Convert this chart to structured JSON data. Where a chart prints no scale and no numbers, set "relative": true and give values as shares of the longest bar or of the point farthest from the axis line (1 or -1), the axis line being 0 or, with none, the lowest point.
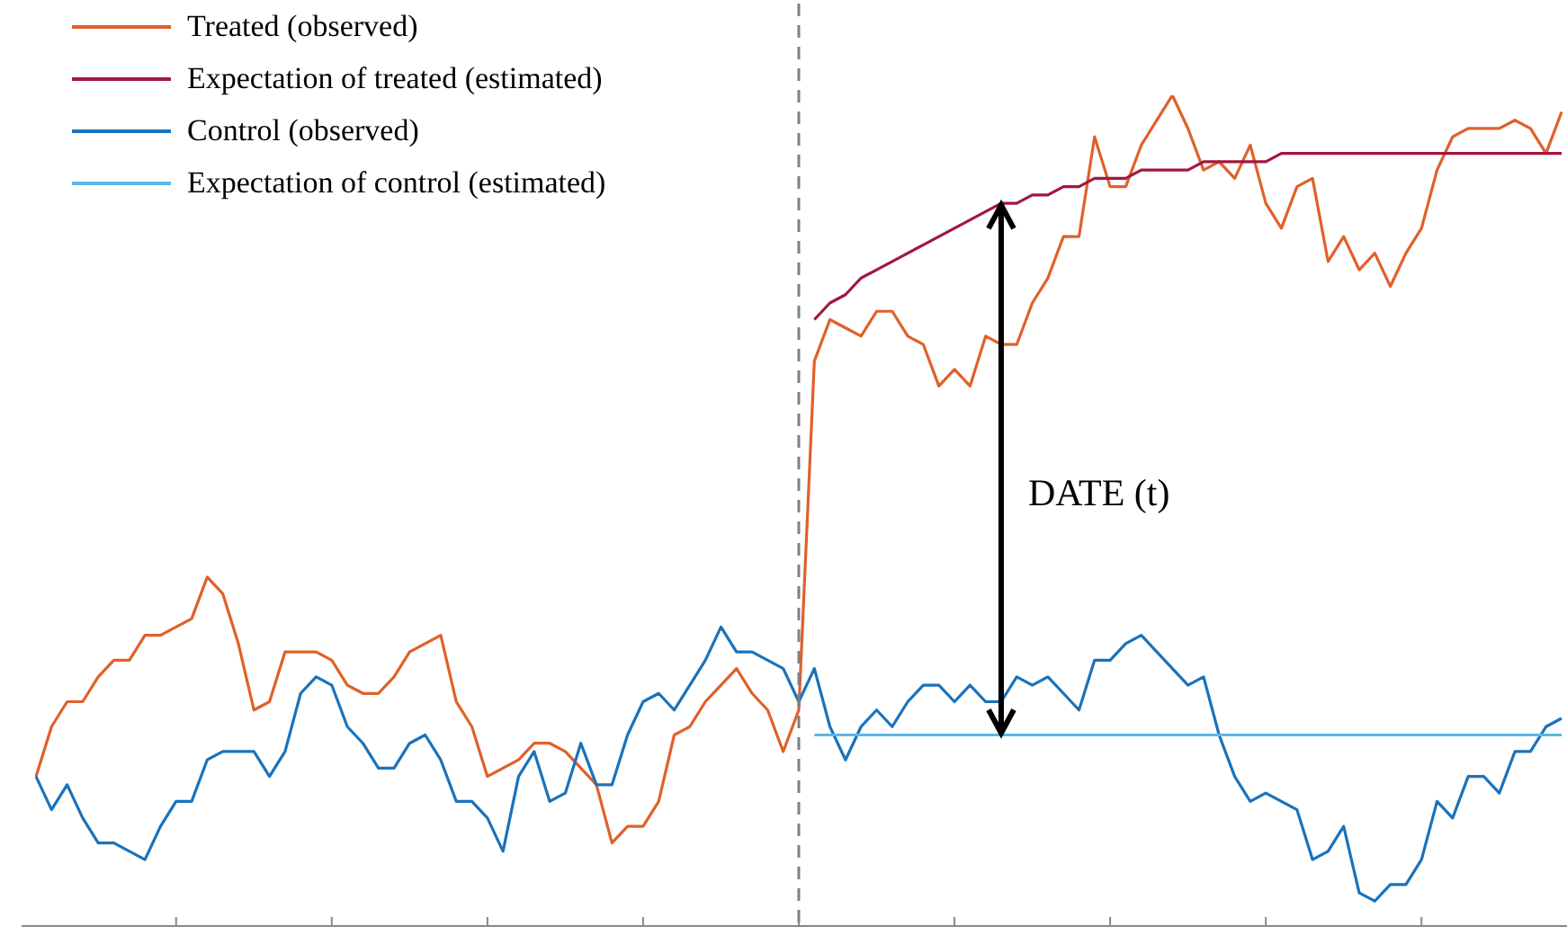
{
  "chart_data": {
    "type": "line",
    "relative": true,
    "legend": "top left",
    "marker": "none",
    "line_style": "solid",
    "categories": [
      null,
      null,
      null,
      null,
      null,
      null,
      null,
      null,
      null,
      null,
      null,
      null,
      null,
      null,
      null,
      null,
      null,
      null,
      null,
      null,
      null,
      null,
      null,
      null,
      null,
      null,
      null,
      null,
      null,
      null,
      null,
      null,
      null,
      null,
      null,
      null,
      null,
      null,
      null,
      null,
      null,
      null,
      null,
      null,
      null,
      null,
      null,
      null,
      null,
      null,
      null,
      null,
      null,
      null,
      null,
      null,
      null,
      null,
      null,
      null,
      null,
      null,
      null,
      null,
      null,
      null,
      null,
      null,
      null,
      null,
      null,
      null,
      null,
      null,
      null,
      null,
      null,
      null,
      null,
      null,
      null,
      null,
      null,
      null,
      null,
      null,
      null,
      null,
      null,
      null,
      null,
      null,
      null,
      null,
      null,
      null,
      null,
      null,
      null
    ],
    "series": [
      {
        "name": "Treated (observed)",
        "color": "#e0602a",
        "values": [
          0.18,
          0.24,
          0.27,
          0.27,
          0.3,
          0.32,
          0.32,
          0.35,
          0.35,
          0.36,
          0.37,
          0.42,
          0.4,
          0.34,
          0.26,
          0.27,
          0.33,
          0.33,
          0.33,
          0.32,
          0.29,
          0.28,
          0.28,
          0.3,
          0.33,
          0.34,
          0.35,
          0.27,
          0.24,
          0.18,
          0.19,
          0.2,
          0.22,
          0.22,
          0.21,
          0.19,
          0.17,
          0.1,
          0.12,
          0.12,
          0.15,
          0.23,
          0.24,
          0.27,
          0.29,
          0.31,
          0.28,
          0.26,
          0.21,
          0.26,
          0.68,
          0.73,
          0.72,
          0.71,
          0.74,
          0.74,
          0.71,
          0.7,
          0.65,
          0.67,
          0.65,
          0.71,
          0.7,
          0.7,
          0.75,
          0.78,
          0.83,
          0.83,
          0.95,
          0.89,
          0.89,
          0.94,
          0.97,
          1.0,
          0.96,
          0.91,
          0.92,
          0.9,
          0.94,
          0.87,
          0.84,
          0.89,
          0.9,
          0.8,
          0.83,
          0.79,
          0.81,
          0.77,
          0.81,
          0.84,
          0.91,
          0.95,
          0.96,
          0.96,
          0.96,
          0.97,
          0.96,
          0.93,
          0.98
        ]
      },
      {
        "name": "Expectation of treated (estimated)",
        "color": "#a3173f",
        "values": [
          null,
          null,
          null,
          null,
          null,
          null,
          null,
          null,
          null,
          null,
          null,
          null,
          null,
          null,
          null,
          null,
          null,
          null,
          null,
          null,
          null,
          null,
          null,
          null,
          null,
          null,
          null,
          null,
          null,
          null,
          null,
          null,
          null,
          null,
          null,
          null,
          null,
          null,
          null,
          null,
          null,
          null,
          null,
          null,
          null,
          null,
          null,
          null,
          null,
          null,
          0.73,
          0.75,
          0.76,
          0.78,
          0.79,
          0.8,
          0.81,
          0.82,
          0.83,
          0.84,
          0.85,
          0.86,
          0.87,
          0.87,
          0.88,
          0.88,
          0.89,
          0.89,
          0.9,
          0.9,
          0.9,
          0.91,
          0.91,
          0.91,
          0.91,
          0.92,
          0.92,
          0.92,
          0.92,
          0.92,
          0.93,
          0.93,
          0.93,
          0.93,
          0.93,
          0.93,
          0.93,
          0.93,
          0.93,
          0.93,
          0.93,
          0.93,
          0.93,
          0.93,
          0.93,
          0.93,
          0.93,
          0.93,
          0.93
        ]
      },
      {
        "name": "Control (observed)",
        "color": "#1a72bb",
        "values": [
          0.18,
          0.14,
          0.17,
          0.13,
          0.1,
          0.1,
          0.09,
          0.08,
          0.12,
          0.15,
          0.15,
          0.2,
          0.21,
          0.21,
          0.21,
          0.18,
          0.21,
          0.28,
          0.3,
          0.29,
          0.24,
          0.22,
          0.19,
          0.19,
          0.22,
          0.23,
          0.2,
          0.15,
          0.15,
          0.13,
          0.09,
          0.18,
          0.21,
          0.15,
          0.16,
          0.22,
          0.17,
          0.17,
          0.23,
          0.27,
          0.28,
          0.26,
          0.29,
          0.32,
          0.36,
          0.33,
          0.33,
          0.32,
          0.31,
          0.27,
          0.31,
          0.24,
          0.2,
          0.24,
          0.26,
          0.24,
          0.27,
          0.29,
          0.29,
          0.27,
          0.29,
          0.27,
          0.27,
          0.3,
          0.29,
          0.3,
          0.28,
          0.26,
          0.32,
          0.32,
          0.34,
          0.35,
          0.33,
          0.31,
          0.29,
          0.3,
          0.23,
          0.18,
          0.15,
          0.16,
          0.15,
          0.14,
          0.08,
          0.09,
          0.12,
          0.04,
          0.03,
          0.05,
          0.05,
          0.08,
          0.15,
          0.13,
          0.18,
          0.18,
          0.16,
          0.21,
          0.21,
          0.24,
          0.25
        ]
      },
      {
        "name": "Expectation of control (estimated)",
        "color": "#5bb8e8",
        "values": [
          null,
          null,
          null,
          null,
          null,
          null,
          null,
          null,
          null,
          null,
          null,
          null,
          null,
          null,
          null,
          null,
          null,
          null,
          null,
          null,
          null,
          null,
          null,
          null,
          null,
          null,
          null,
          null,
          null,
          null,
          null,
          null,
          null,
          null,
          null,
          null,
          null,
          null,
          null,
          null,
          null,
          null,
          null,
          null,
          null,
          null,
          null,
          null,
          null,
          null,
          0.23,
          0.23,
          0.23,
          0.23,
          0.23,
          0.23,
          0.23,
          0.23,
          0.23,
          0.23,
          0.23,
          0.23,
          0.23,
          0.23,
          0.23,
          0.23,
          0.23,
          0.23,
          0.23,
          0.23,
          0.23,
          0.23,
          0.23,
          0.23,
          0.23,
          0.23,
          0.23,
          0.23,
          0.23,
          0.23,
          0.23,
          0.23,
          0.23,
          0.23,
          0.23,
          0.23,
          0.23,
          0.23,
          0.23,
          0.23,
          0.23,
          0.23,
          0.23,
          0.23,
          0.23,
          0.23,
          0.23,
          0.23,
          0.23
        ]
      }
    ],
    "annotations": [
      "DATE (t)"
    ]
  }
}
